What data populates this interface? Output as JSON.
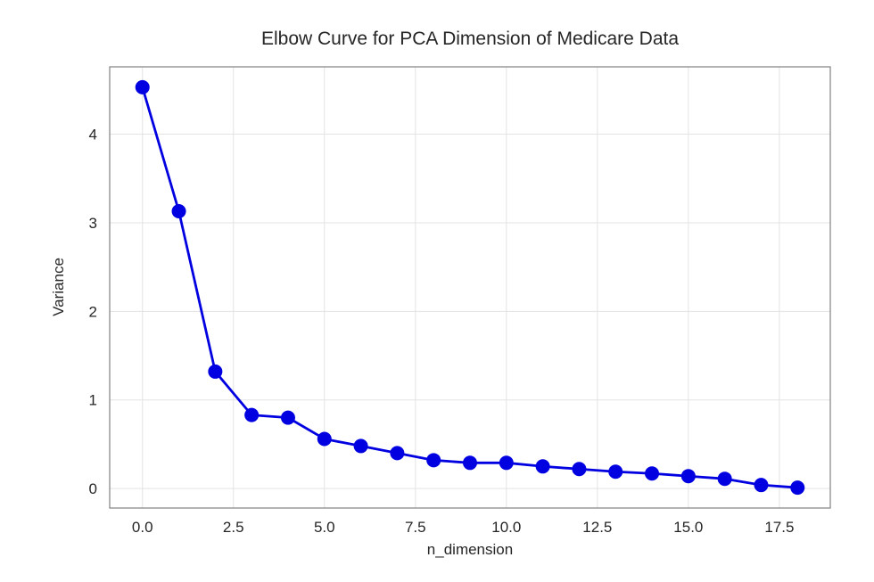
{
  "chart_data": {
    "type": "line",
    "title": "Elbow Curve for PCA Dimension of Medicare Data",
    "xlabel": "n_dimension",
    "ylabel": "Variance",
    "x": [
      0,
      1,
      2,
      3,
      4,
      5,
      6,
      7,
      8,
      9,
      10,
      11,
      12,
      13,
      14,
      15,
      16,
      17,
      18
    ],
    "y": [
      4.53,
      3.13,
      1.32,
      0.83,
      0.8,
      0.56,
      0.48,
      0.4,
      0.32,
      0.29,
      0.29,
      0.25,
      0.22,
      0.19,
      0.17,
      0.14,
      0.11,
      0.04,
      0.01
    ],
    "xlim": [
      -0.9,
      18.9
    ],
    "ylim": [
      -0.22,
      4.76
    ],
    "xticks": [
      0.0,
      2.5,
      5.0,
      7.5,
      10.0,
      12.5,
      15.0,
      17.5
    ],
    "xtick_labels": [
      "0.0",
      "2.5",
      "5.0",
      "7.5",
      "10.0",
      "12.5",
      "15.0",
      "17.5"
    ],
    "yticks": [
      0,
      1,
      2,
      3,
      4
    ],
    "ytick_labels": [
      "0",
      "1",
      "2",
      "3",
      "4"
    ],
    "grid": true,
    "legend_position": "none",
    "line_color": "#0000e0",
    "marker_color": "#0000e0",
    "grid_color": "#e3e3e3",
    "spine_color": "#8a8a8a",
    "background_color": "#ffffff",
    "text_color": "#262626"
  }
}
